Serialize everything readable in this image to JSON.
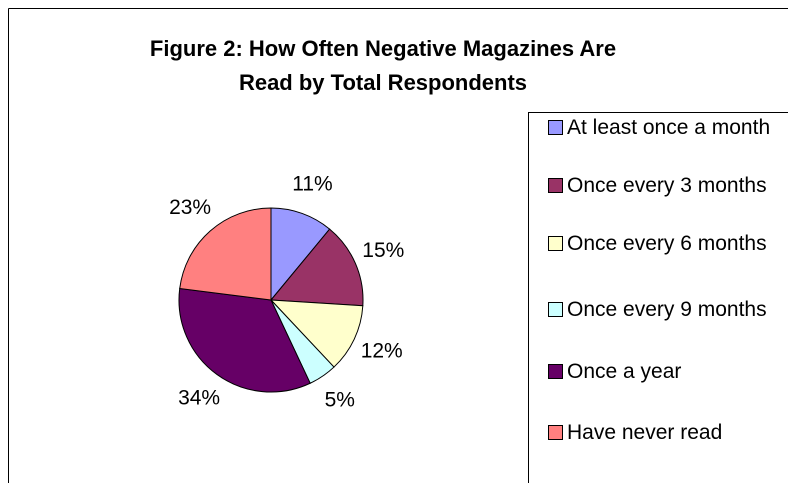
{
  "chart_data": {
    "type": "pie",
    "title": "Figure 2: How Often Negative Magazines Are Read by Total Respondents",
    "categories": [
      "At least once a month",
      "Once every 3 months",
      "Once every 6 months",
      "Once every 9 months",
      "Once a year",
      "Have never read"
    ],
    "values": [
      11,
      15,
      12,
      5,
      34,
      23
    ],
    "value_labels": [
      "11%",
      "15%",
      "12%",
      "5%",
      "34%",
      "23%"
    ],
    "colors": [
      "#9999ff",
      "#993366",
      "#ffffcc",
      "#ccffff",
      "#660066",
      "#ff8080"
    ],
    "legend": "right"
  }
}
